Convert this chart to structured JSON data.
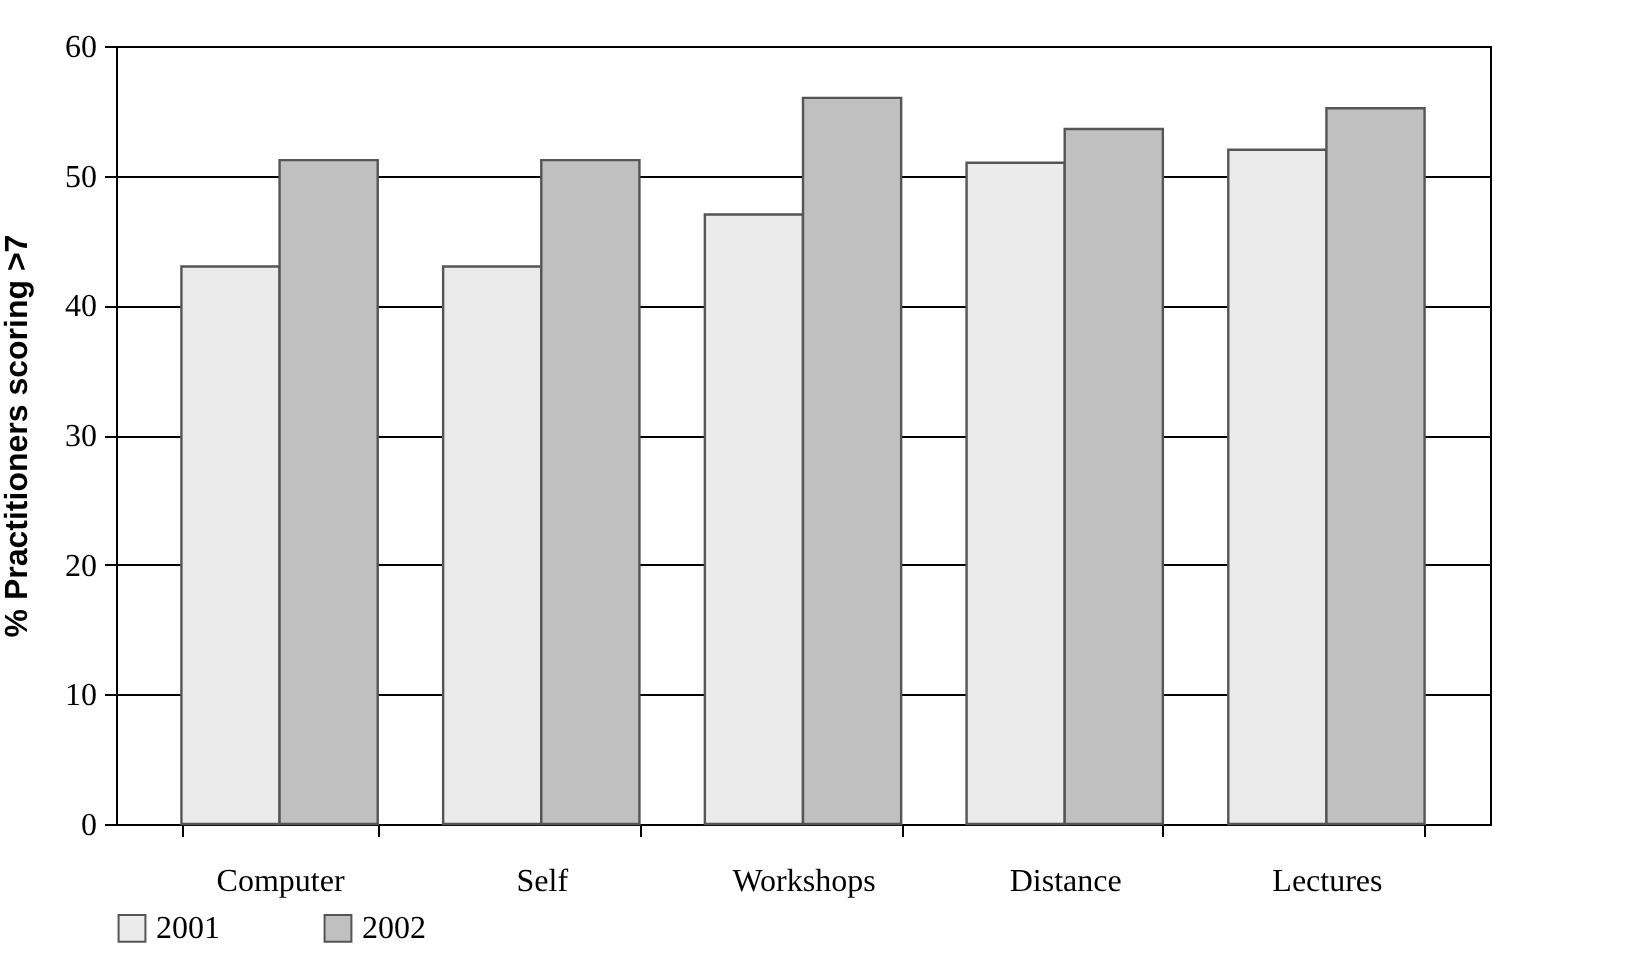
{
  "chart_data": {
    "type": "bar",
    "ylabel": "% Practitioners scoring >7",
    "categories": [
      "Computer",
      "Self",
      "Workshops",
      "Distance",
      "Lectures"
    ],
    "series": [
      {
        "name": "2001",
        "color": "#ebebeb",
        "values": [
          43,
          43,
          47,
          51,
          52
        ]
      },
      {
        "name": "2002",
        "color": "#c0c0c0",
        "values": [
          51.2,
          51.2,
          56,
          53.6,
          55.2
        ]
      }
    ],
    "ylim": [
      0,
      60
    ],
    "yticks": [
      0,
      10,
      20,
      30,
      40,
      50,
      60
    ],
    "grid": "y",
    "legend": "bottom"
  }
}
